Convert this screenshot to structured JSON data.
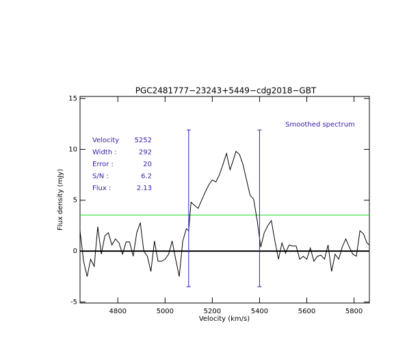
{
  "chart_data": {
    "type": "line",
    "title": "PGC2481777−23243+5449−cdg2018−GBT",
    "xlabel": "Velocity (km/s)",
    "ylabel": "Flux density (mJy)",
    "xlim": [
      4640,
      5865
    ],
    "ylim": [
      -5.1,
      15.2
    ],
    "xticks": [
      4800,
      5000,
      5200,
      5400,
      5600,
      5800
    ],
    "yticks": [
      -5,
      0,
      5,
      10,
      15
    ],
    "series": [
      {
        "color": "#000000",
        "x": [
          4640,
          4655,
          4670,
          4685,
          4700,
          4715,
          4730,
          4745,
          4760,
          4775,
          4790,
          4805,
          4820,
          4835,
          4850,
          4865,
          4880,
          4895,
          4910,
          4925,
          4940,
          4955,
          4970,
          4985,
          5000,
          5015,
          5030,
          5045,
          5060,
          5075,
          5090,
          5100,
          5110,
          5125,
          5140,
          5155,
          5170,
          5185,
          5200,
          5215,
          5230,
          5245,
          5260,
          5275,
          5290,
          5300,
          5315,
          5330,
          5345,
          5360,
          5375,
          5390,
          5405,
          5420,
          5435,
          5450,
          5465,
          5480,
          5495,
          5510,
          5525,
          5540,
          5555,
          5570,
          5585,
          5600,
          5615,
          5630,
          5645,
          5660,
          5675,
          5690,
          5705,
          5720,
          5735,
          5750,
          5765,
          5780,
          5795,
          5810,
          5825,
          5840,
          5855,
          5865
        ],
        "values": [
          2,
          -1,
          -2.5,
          -0.8,
          -1.5,
          2.4,
          -0.3,
          1.5,
          1.8,
          0.6,
          1.2,
          0.8,
          -0.3,
          0.9,
          0.9,
          -0.5,
          1.8,
          2.8,
          0,
          -0.5,
          -2,
          1,
          -1,
          -1,
          -0.8,
          -0.3,
          1,
          -0.8,
          -2.5,
          1,
          2.2,
          2,
          4.8,
          4.5,
          4.2,
          5,
          5.8,
          6.5,
          7,
          6.8,
          7.5,
          8.5,
          9.6,
          8,
          9,
          9.8,
          9.5,
          8.5,
          7,
          5.5,
          5.1,
          3,
          0.4,
          1.8,
          2.5,
          3,
          1,
          -0.8,
          0.8,
          -0.2,
          0.6,
          0.5,
          0.5,
          -0.8,
          -0.5,
          -0.8,
          0.3,
          -1,
          -0.5,
          -0.4,
          -0.8,
          0.6,
          -2,
          -0.3,
          -0.8,
          0.4,
          1.2,
          0.4,
          -0.3,
          -0.5,
          2,
          1.7,
          0.8,
          0.6
        ]
      }
    ],
    "threshold": {
      "value": 3.55,
      "color": "#22dd22"
    },
    "markers": {
      "x": [
        5100,
        5400
      ],
      "ymin": -3.5,
      "ymax": 11.9,
      "color": "#2222bb"
    },
    "legend_text": "Smoothed spectrum",
    "stats": [
      {
        "label": "Velocity",
        "value": 5252
      },
      {
        "label": "Width :",
        "value": 292
      },
      {
        "label": "Error :",
        "value": 20
      },
      {
        "label": "S/N :",
        "value": 6.2
      },
      {
        "label": "Flux :",
        "value": 2.13
      }
    ],
    "text_color": "#3a1aa8"
  }
}
